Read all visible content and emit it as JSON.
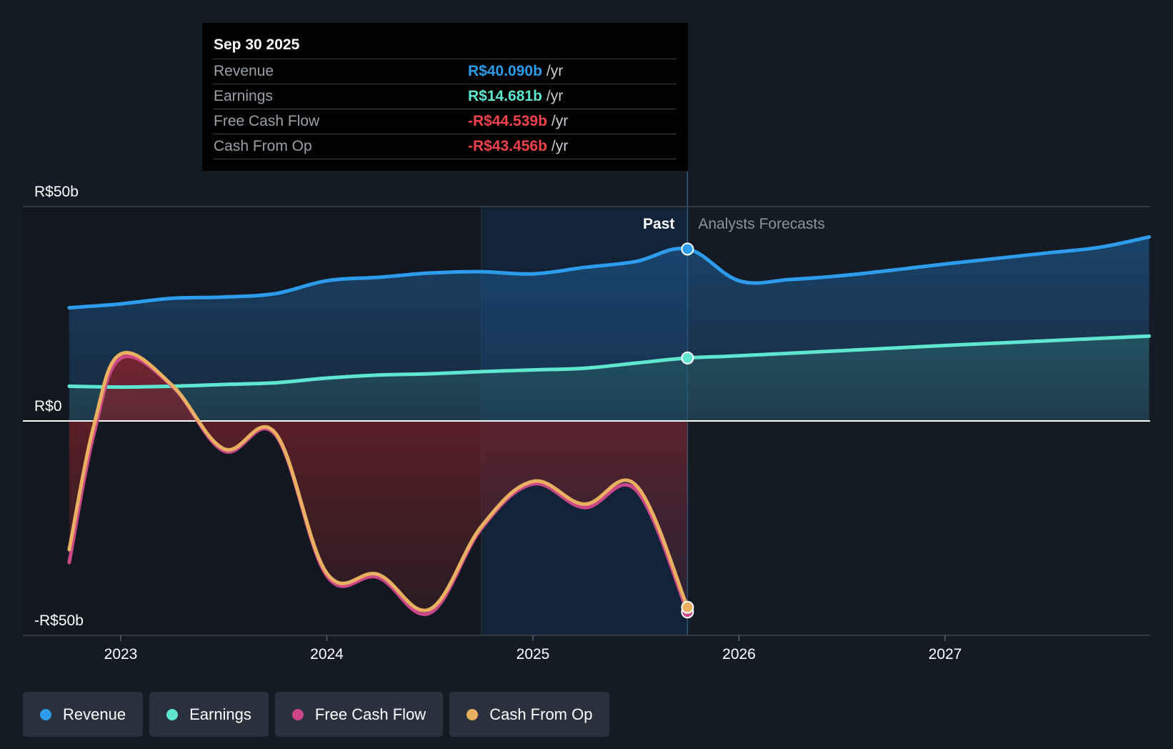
{
  "tooltip": {
    "date": "Sep 30 2025",
    "rows": [
      {
        "label": "Revenue",
        "value": "R$40.090b",
        "unit": "/yr",
        "color": "#2d9cec"
      },
      {
        "label": "Earnings",
        "value": "R$14.681b",
        "unit": "/yr",
        "color": "#5ee6cf"
      },
      {
        "label": "Free Cash Flow",
        "value": "-R$44.539b",
        "unit": "/yr",
        "color": "#f2424d"
      },
      {
        "label": "Cash From Op",
        "value": "-R$43.456b",
        "unit": "/yr",
        "color": "#f2424d"
      }
    ]
  },
  "legend": [
    {
      "label": "Revenue",
      "color": "#2d9cec"
    },
    {
      "label": "Earnings",
      "color": "#5ee6cf"
    },
    {
      "label": "Free Cash Flow",
      "color": "#cc4788"
    },
    {
      "label": "Cash From Op",
      "color": "#e8b060"
    }
  ],
  "chart_data": {
    "type": "line",
    "title": "",
    "xlabel": "",
    "ylabel": "",
    "ylim": [
      -50,
      50
    ],
    "xlim": [
      2022.55,
      2027.99
    ],
    "y_ticks": [
      {
        "value": 50,
        "label": "R$50b"
      },
      {
        "value": 0,
        "label": "R$0"
      },
      {
        "value": -50,
        "label": "-R$50b"
      }
    ],
    "x_ticks": [
      {
        "value": 2023.0,
        "label": "2023"
      },
      {
        "value": 2024.0,
        "label": "2024"
      },
      {
        "value": 2025.0,
        "label": "2025"
      },
      {
        "value": 2026.0,
        "label": "2026"
      },
      {
        "value": 2027.0,
        "label": "2027"
      }
    ],
    "past_label": "Past",
    "forecast_label": "Analysts Forecasts",
    "past_end": 2025.75,
    "highlight_start": 2024.75,
    "series": [
      {
        "name": "Revenue",
        "color": "#2d9cec",
        "x": [
          2022.75,
          2023.0,
          2023.25,
          2023.5,
          2023.75,
          2024.0,
          2024.25,
          2024.5,
          2024.75,
          2025.0,
          2025.25,
          2025.5,
          2025.75,
          2026.0,
          2026.25,
          2026.5,
          2026.75,
          2027.0,
          2027.25,
          2027.5,
          2027.75,
          2027.99
        ],
        "values": [
          26.4,
          27.3,
          28.6,
          28.9,
          29.7,
          32.7,
          33.5,
          34.5,
          34.8,
          34.3,
          35.8,
          37.2,
          40.09,
          32.7,
          33.0,
          33.9,
          35.2,
          36.6,
          37.9,
          39.2,
          40.5,
          42.9
        ]
      },
      {
        "name": "Earnings",
        "color": "#5ee6cf",
        "x": [
          2022.75,
          2023.0,
          2023.25,
          2023.5,
          2023.75,
          2024.0,
          2024.25,
          2024.5,
          2024.75,
          2025.0,
          2025.25,
          2025.5,
          2025.75,
          2026.0,
          2026.5,
          2027.0,
          2027.5,
          2027.99
        ],
        "values": [
          8.1,
          7.9,
          8.1,
          8.5,
          8.9,
          10.0,
          10.7,
          11.0,
          11.5,
          11.9,
          12.3,
          13.5,
          14.681,
          15.2,
          16.4,
          17.6,
          18.7,
          19.8
        ]
      },
      {
        "name": "Free Cash Flow",
        "color": "#cc4788",
        "x": [
          2022.75,
          2022.87,
          2023.0,
          2023.25,
          2023.5,
          2023.75,
          2024.0,
          2024.25,
          2024.5,
          2024.75,
          2025.0,
          2025.25,
          2025.5,
          2025.75
        ],
        "values": [
          -33.0,
          -3.0,
          14.6,
          8.1,
          -7.0,
          -3.2,
          -36.1,
          -36.5,
          -44.8,
          -25.1,
          -14.7,
          -20.2,
          -16.1,
          -44.539
        ]
      },
      {
        "name": "Cash From Op",
        "color": "#e8b060",
        "x": [
          2022.75,
          2022.87,
          2023.0,
          2023.25,
          2023.5,
          2023.75,
          2024.0,
          2024.25,
          2024.5,
          2024.75,
          2025.0,
          2025.25,
          2025.5,
          2025.75
        ],
        "values": [
          -30.0,
          -1.0,
          15.6,
          8.3,
          -6.5,
          -2.8,
          -35.5,
          -35.8,
          -43.9,
          -24.6,
          -14.1,
          -19.4,
          -15.0,
          -43.456
        ]
      }
    ]
  }
}
